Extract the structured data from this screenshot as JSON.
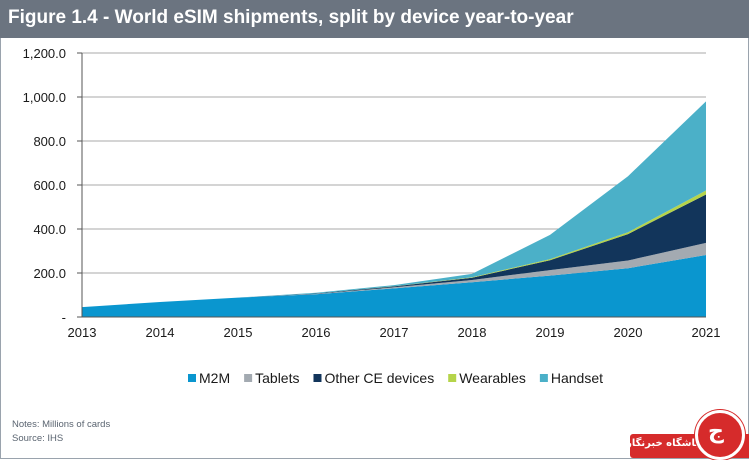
{
  "figure": {
    "title": "Figure 1.4 - World eSIM shipments, split by device year-to-year",
    "notes": "Notes:  Millions of cards",
    "source": "Source:  IHS"
  },
  "watermark": {
    "text": "باشگاه خبرنگاران",
    "icon": "news-logo-icon",
    "color": "#d62b2b"
  },
  "chart_data": {
    "type": "area",
    "stacked": true,
    "title": "Figure 1.4 - World eSIM shipments, split by device year-to-year",
    "xlabel": "",
    "ylabel": "",
    "categories": [
      "2013",
      "2014",
      "2015",
      "2016",
      "2017",
      "2018",
      "2019",
      "2020",
      "2021"
    ],
    "ylim": [
      0,
      1200
    ],
    "yticks": [
      "-",
      "200.0",
      "400.0",
      "600.0",
      "800.0",
      "1,000.0",
      "1,200.0"
    ],
    "ytick_values": [
      0,
      200,
      400,
      600,
      800,
      1000,
      1200
    ],
    "grid": true,
    "legend_position": "bottom",
    "series": [
      {
        "name": "M2M",
        "color": "#0a96cf",
        "values": [
          45,
          68,
          88,
          103,
          130,
          158,
          188,
          222,
          282
        ]
      },
      {
        "name": "Tablets",
        "color": "#a3aab1",
        "values": [
          0,
          0,
          0,
          2,
          5,
          10,
          25,
          35,
          55
        ]
      },
      {
        "name": "Other CE devices",
        "color": "#12355b",
        "values": [
          0,
          0,
          0,
          2,
          4,
          10,
          45,
          120,
          220
        ]
      },
      {
        "name": "Wearables",
        "color": "#b5d44a",
        "values": [
          0,
          0,
          0,
          0,
          1,
          3,
          5,
          8,
          18
        ]
      },
      {
        "name": "Handset",
        "color": "#4bb0c8",
        "values": [
          0,
          0,
          0,
          3,
          5,
          15,
          110,
          255,
          405
        ]
      }
    ]
  }
}
